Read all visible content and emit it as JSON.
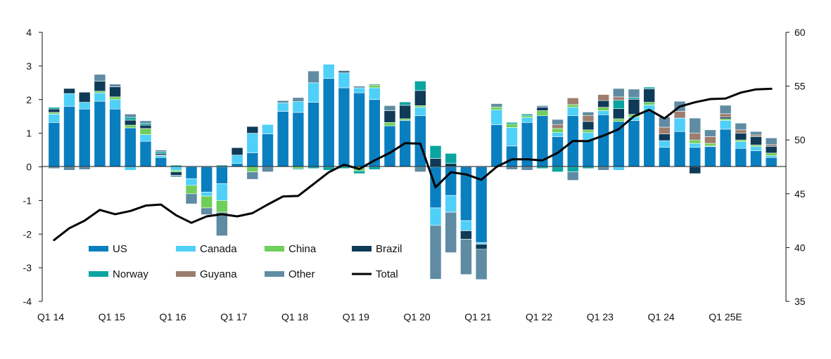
{
  "chart_data": {
    "type": "bar",
    "subtype": "stacked-bar-with-line",
    "series": [
      {
        "name": "US",
        "color": "#0a7fc0",
        "values": [
          1.32,
          1.8,
          1.72,
          1.95,
          1.72,
          1.16,
          0.76,
          0.28,
          0.0,
          -0.35,
          -0.75,
          -0.5,
          0.1,
          0.42,
          0.98,
          1.65,
          1.62,
          1.92,
          2.63,
          2.35,
          2.2,
          2.0,
          1.22,
          1.38,
          1.52,
          -1.22,
          -0.85,
          -1.6,
          -2.25,
          1.25,
          0.62,
          1.32,
          1.52,
          0.9,
          1.52,
          0.8,
          1.55,
          1.35,
          1.38,
          1.66,
          0.58,
          1.05,
          0.58,
          0.6,
          1.12,
          0.55,
          0.48,
          0.28
        ]
      },
      {
        "name": "Canada",
        "color": "#4fd0f8",
        "values": [
          0.25,
          0.38,
          0.2,
          0.25,
          0.28,
          -0.1,
          0.2,
          0.05,
          -0.1,
          -0.2,
          -0.12,
          -0.5,
          0.25,
          0.58,
          0.28,
          0.25,
          0.32,
          0.58,
          0.42,
          0.45,
          0.15,
          0.35,
          0.0,
          0.0,
          0.25,
          -0.52,
          -0.5,
          -0.3,
          -0.05,
          0.45,
          0.55,
          0.15,
          0.0,
          0.12,
          0.25,
          0.22,
          0.12,
          -0.1,
          0.1,
          0.18,
          0.2,
          0.4,
          0.12,
          0.02,
          0.26,
          0.2,
          0.12,
          0.05
        ]
      },
      {
        "name": "China",
        "color": "#6ecf5a",
        "values": [
          0.05,
          0.0,
          0.0,
          0.05,
          0.08,
          0.08,
          0.18,
          0.02,
          -0.05,
          -0.25,
          -0.35,
          -0.35,
          0.0,
          -0.15,
          0.0,
          0.0,
          -0.05,
          0.0,
          0.0,
          0.0,
          -0.12,
          0.08,
          0.1,
          0.05,
          0.05,
          0.0,
          0.0,
          0.0,
          0.0,
          0.08,
          0.1,
          0.05,
          0.15,
          0.12,
          0.08,
          0.08,
          0.1,
          0.08,
          0.08,
          0.08,
          0.0,
          0.0,
          0.1,
          0.08,
          0.05,
          0.05,
          0.05,
          0.08
        ]
      },
      {
        "name": "Brazil",
        "color": "#0f3a58",
        "values": [
          0.1,
          0.15,
          0.3,
          0.3,
          0.3,
          0.15,
          0.1,
          0.05,
          -0.1,
          0.0,
          0.0,
          0.0,
          0.22,
          0.2,
          0.0,
          0.0,
          0.0,
          0.0,
          0.0,
          0.05,
          0.0,
          0.0,
          0.35,
          0.4,
          0.45,
          0.25,
          0.1,
          -0.25,
          -0.15,
          0.0,
          0.0,
          0.0,
          0.1,
          0.0,
          0.0,
          0.25,
          0.2,
          0.3,
          0.45,
          0.4,
          0.2,
          0.0,
          -0.2,
          0.0,
          0.05,
          0.2,
          0.25,
          0.2
        ]
      },
      {
        "name": "Norway",
        "color": "#0aa5a0",
        "values": [
          0.05,
          0.0,
          0.0,
          0.0,
          0.0,
          0.08,
          0.05,
          0.05,
          0.05,
          0.0,
          0.0,
          0.05,
          0.0,
          0.0,
          0.0,
          0.0,
          -0.03,
          -0.05,
          -0.1,
          -0.05,
          -0.08,
          -0.08,
          0.0,
          0.1,
          0.28,
          0.38,
          0.3,
          0.0,
          0.0,
          0.0,
          0.05,
          0.05,
          -0.05,
          -0.15,
          -0.15,
          -0.05,
          0.0,
          0.25,
          0.05,
          0.05,
          0.0,
          0.0,
          0.0,
          0.0,
          0.0,
          0.0,
          0.0,
          0.0
        ]
      },
      {
        "name": "Guyana",
        "color": "#9d7d6e",
        "values": [
          0,
          0,
          0,
          0,
          0,
          0,
          0,
          0,
          0,
          0,
          0,
          0,
          0,
          0,
          0,
          0,
          0,
          0,
          0,
          0,
          0,
          0,
          0,
          0,
          0,
          0,
          0,
          0,
          0,
          0,
          0,
          0,
          0,
          0.12,
          0.2,
          0.18,
          0.18,
          0.1,
          0,
          0,
          0.2,
          0.2,
          0.2,
          0.2,
          0.1,
          0.1,
          0.05,
          0.05
        ]
      },
      {
        "name": "Other",
        "color": "#5f8ca3",
        "values": [
          -0.05,
          -0.1,
          -0.08,
          0.2,
          0.08,
          0.1,
          0.08,
          0.05,
          -0.05,
          -0.3,
          -0.2,
          -0.7,
          0.0,
          -0.22,
          -0.15,
          0.07,
          0.12,
          0.35,
          0.0,
          0.02,
          0.05,
          0.03,
          0.15,
          0.0,
          -0.15,
          -1.6,
          -1.2,
          -1.05,
          -0.9,
          0.1,
          -0.08,
          -0.1,
          0.05,
          0.15,
          -0.25,
          0.1,
          -0.1,
          0.25,
          0.25,
          0.0,
          0.3,
          0.3,
          0.45,
          0.2,
          0.25,
          0.2,
          0.1,
          0.2
        ]
      }
    ],
    "total": {
      "name": "Total",
      "color": "#000000",
      "values": [
        40.7,
        41.8,
        42.5,
        43.5,
        43.1,
        43.4,
        43.9,
        44.0,
        43.0,
        42.3,
        42.9,
        43.1,
        42.9,
        43.2,
        44.0,
        44.75,
        44.8,
        45.9,
        47.0,
        47.7,
        47.3,
        48.1,
        48.8,
        49.7,
        49.65,
        45.6,
        47.0,
        46.8,
        46.3,
        47.5,
        48.2,
        48.2,
        48.1,
        48.8,
        49.9,
        49.9,
        50.4,
        51.0,
        52.2,
        52.8,
        52.0,
        53.1,
        53.5,
        53.8,
        53.85,
        54.4,
        54.7,
        54.75
      ]
    },
    "categories": [
      "Q1 14",
      "Q2 14",
      "Q3 14",
      "Q4 14",
      "Q1 15",
      "Q2 15",
      "Q3 15",
      "Q4 15",
      "Q1 16",
      "Q2 16",
      "Q3 16",
      "Q4 16",
      "Q1 17",
      "Q2 17",
      "Q3 17",
      "Q4 17",
      "Q1 18",
      "Q2 18",
      "Q3 18",
      "Q4 18",
      "Q1 19",
      "Q2 19",
      "Q3 19",
      "Q4 19",
      "Q1 20",
      "Q2 20",
      "Q3 20",
      "Q4 20",
      "Q1 21",
      "Q2 21",
      "Q3 21",
      "Q4 21",
      "Q1 22",
      "Q2 22",
      "Q3 22",
      "Q4 22",
      "Q1 23",
      "Q2 23",
      "Q3 23",
      "Q4 23",
      "Q1 24",
      "Q2 24",
      "Q3 24",
      "Q4 24",
      "Q1 25E",
      "Q2 25E",
      "Q3 25E",
      "Q4 25E"
    ],
    "xtick_labels": [
      "Q1 14",
      "Q1 15",
      "Q1 16",
      "Q1 17",
      "Q1 18",
      "Q1 19",
      "Q1 20",
      "Q1 21",
      "Q1 22",
      "Q1 23",
      "Q1 24",
      "Q1 25E"
    ],
    "left_axis": {
      "ylim": [
        -4,
        4
      ],
      "ticks": [
        "4",
        "3",
        "2",
        "1",
        "0",
        "-1",
        "-2",
        "-3",
        "-4"
      ]
    },
    "right_axis": {
      "ylim": [
        35,
        60
      ],
      "ticks": [
        "60",
        "55",
        "50",
        "45",
        "40",
        "35"
      ]
    },
    "legend": {
      "placement": "bottom-left",
      "items": [
        "US",
        "Canada",
        "China",
        "Brazil",
        "Norway",
        "Guyana",
        "Other",
        "Total"
      ]
    },
    "grid": false,
    "title": "",
    "xlabel": "",
    "ylabel": ""
  }
}
